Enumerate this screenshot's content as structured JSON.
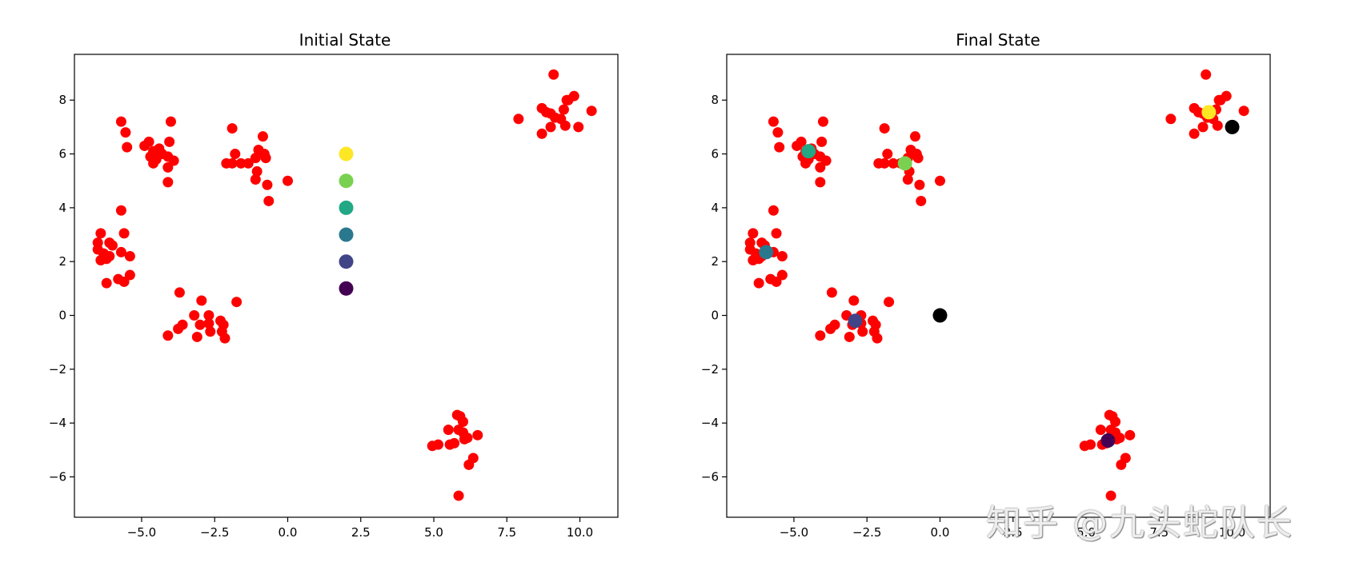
{
  "chart_data": [
    {
      "type": "scatter",
      "title": "Initial State",
      "xlabel": "",
      "ylabel": "",
      "xlim": [
        -7.3,
        11.3
      ],
      "ylim": [
        -7.5,
        9.7
      ],
      "xticks": [
        -5.0,
        -2.5,
        0.0,
        2.5,
        5.0,
        7.5,
        10.0
      ],
      "xtick_labels": [
        "−5.0",
        "−2.5",
        "0.0",
        "2.5",
        "5.0",
        "7.5",
        "10.0"
      ],
      "yticks": [
        -6,
        -4,
        -2,
        0,
        2,
        4,
        6,
        8
      ],
      "ytick_labels": [
        "−6",
        "−4",
        "−2",
        "0",
        "2",
        "4",
        "6",
        "8"
      ],
      "grid": false,
      "points_color": "#ff0000",
      "points": [
        [
          -5.7,
          7.2
        ],
        [
          -5.55,
          6.8
        ],
        [
          -5.5,
          6.25
        ],
        [
          -4.9,
          6.3
        ],
        [
          -4.75,
          6.45
        ],
        [
          -4.6,
          6.1
        ],
        [
          -4.4,
          6.2
        ],
        [
          -4.3,
          6.0
        ],
        [
          -4.7,
          5.9
        ],
        [
          -4.5,
          5.8
        ],
        [
          -4.6,
          5.65
        ],
        [
          -4.1,
          5.9
        ],
        [
          -3.9,
          5.75
        ],
        [
          -4.1,
          5.5
        ],
        [
          -4.05,
          6.45
        ],
        [
          -4.0,
          7.2
        ],
        [
          -4.1,
          4.95
        ],
        [
          -1.9,
          6.95
        ],
        [
          -1.8,
          6.0
        ],
        [
          -2.1,
          5.65
        ],
        [
          -1.9,
          5.65
        ],
        [
          -1.6,
          5.65
        ],
        [
          -1.35,
          5.65
        ],
        [
          -1.1,
          5.85
        ],
        [
          -1.0,
          6.15
        ],
        [
          -0.8,
          6.0
        ],
        [
          -0.85,
          6.65
        ],
        [
          -0.75,
          5.85
        ],
        [
          -1.05,
          5.35
        ],
        [
          -1.1,
          5.05
        ],
        [
          -0.7,
          4.85
        ],
        [
          -0.65,
          4.25
        ],
        [
          0.0,
          5.0
        ],
        [
          -5.7,
          3.9
        ],
        [
          -5.6,
          3.05
        ],
        [
          -6.4,
          3.05
        ],
        [
          -6.5,
          2.7
        ],
        [
          -6.1,
          2.7
        ],
        [
          -6.0,
          2.6
        ],
        [
          -6.5,
          2.45
        ],
        [
          -6.3,
          2.3
        ],
        [
          -6.2,
          2.1
        ],
        [
          -6.4,
          2.05
        ],
        [
          -5.7,
          2.35
        ],
        [
          -5.4,
          2.2
        ],
        [
          -6.2,
          1.2
        ],
        [
          -5.8,
          1.35
        ],
        [
          -5.6,
          1.25
        ],
        [
          -5.4,
          1.5
        ],
        [
          -6.1,
          2.2
        ],
        [
          -3.7,
          0.85
        ],
        [
          -2.95,
          0.55
        ],
        [
          -1.75,
          0.5
        ],
        [
          -3.2,
          0.0
        ],
        [
          -2.7,
          0.0
        ],
        [
          -2.3,
          -0.2
        ],
        [
          -3.0,
          -0.35
        ],
        [
          -2.7,
          -0.3
        ],
        [
          -2.2,
          -0.35
        ],
        [
          -3.6,
          -0.35
        ],
        [
          -3.75,
          -0.5
        ],
        [
          -2.65,
          -0.6
        ],
        [
          -2.25,
          -0.6
        ],
        [
          -4.1,
          -0.75
        ],
        [
          -3.1,
          -0.8
        ],
        [
          -2.15,
          -0.85
        ],
        [
          5.8,
          -3.7
        ],
        [
          5.9,
          -3.75
        ],
        [
          6.0,
          -3.95
        ],
        [
          5.5,
          -4.25
        ],
        [
          5.85,
          -4.25
        ],
        [
          6.0,
          -4.35
        ],
        [
          6.5,
          -4.45
        ],
        [
          6.15,
          -4.55
        ],
        [
          6.05,
          -4.6
        ],
        [
          5.15,
          -4.8
        ],
        [
          4.95,
          -4.85
        ],
        [
          5.7,
          -4.75
        ],
        [
          5.55,
          -4.8
        ],
        [
          6.35,
          -5.3
        ],
        [
          6.2,
          -5.55
        ],
        [
          5.85,
          -6.7
        ],
        [
          9.1,
          8.95
        ],
        [
          9.8,
          8.15
        ],
        [
          9.55,
          8.0
        ],
        [
          9.6,
          8.0
        ],
        [
          10.4,
          7.6
        ],
        [
          9.45,
          7.65
        ],
        [
          8.7,
          7.7
        ],
        [
          9.0,
          7.5
        ],
        [
          8.85,
          7.55
        ],
        [
          9.15,
          7.35
        ],
        [
          7.9,
          7.3
        ],
        [
          9.35,
          7.3
        ],
        [
          9.0,
          7.0
        ],
        [
          9.5,
          7.05
        ],
        [
          9.95,
          7.0
        ],
        [
          8.7,
          6.75
        ]
      ],
      "centroids": [
        {
          "x": 2,
          "y": 1,
          "color": "#440154"
        },
        {
          "x": 2,
          "y": 2,
          "color": "#414487"
        },
        {
          "x": 2,
          "y": 3,
          "color": "#2a788e"
        },
        {
          "x": 2,
          "y": 4,
          "color": "#22a884"
        },
        {
          "x": 2,
          "y": 5,
          "color": "#7ad151"
        },
        {
          "x": 2,
          "y": 6,
          "color": "#fde725"
        }
      ],
      "extra_markers": []
    },
    {
      "type": "scatter",
      "title": "Final State",
      "xlabel": "",
      "ylabel": "",
      "xlim": [
        -7.3,
        11.3
      ],
      "ylim": [
        -7.5,
        9.7
      ],
      "xticks": [
        -5.0,
        -2.5,
        0.0,
        2.5,
        5.0,
        7.5,
        10.0
      ],
      "xtick_labels": [
        "−5.0",
        "−2.5",
        "0.0",
        "2.5",
        "5.0",
        "7.5",
        "10.0"
      ],
      "yticks": [
        -6,
        -4,
        -2,
        0,
        2,
        4,
        6,
        8
      ],
      "ytick_labels": [
        "−6",
        "−4",
        "−2",
        "0",
        "2",
        "4",
        "6",
        "8"
      ],
      "grid": false,
      "points_color": "#ff0000",
      "points": [
        [
          -5.7,
          7.2
        ],
        [
          -5.55,
          6.8
        ],
        [
          -5.5,
          6.25
        ],
        [
          -4.9,
          6.3
        ],
        [
          -4.75,
          6.45
        ],
        [
          -4.6,
          6.1
        ],
        [
          -4.4,
          6.2
        ],
        [
          -4.3,
          6.0
        ],
        [
          -4.7,
          5.9
        ],
        [
          -4.5,
          5.8
        ],
        [
          -4.6,
          5.65
        ],
        [
          -4.1,
          5.9
        ],
        [
          -3.9,
          5.75
        ],
        [
          -4.1,
          5.5
        ],
        [
          -4.05,
          6.45
        ],
        [
          -4.0,
          7.2
        ],
        [
          -4.1,
          4.95
        ],
        [
          -1.9,
          6.95
        ],
        [
          -1.8,
          6.0
        ],
        [
          -2.1,
          5.65
        ],
        [
          -1.9,
          5.65
        ],
        [
          -1.6,
          5.65
        ],
        [
          -1.35,
          5.65
        ],
        [
          -1.1,
          5.85
        ],
        [
          -1.0,
          6.15
        ],
        [
          -0.8,
          6.0
        ],
        [
          -0.85,
          6.65
        ],
        [
          -0.75,
          5.85
        ],
        [
          -1.05,
          5.35
        ],
        [
          -1.1,
          5.05
        ],
        [
          -0.7,
          4.85
        ],
        [
          -0.65,
          4.25
        ],
        [
          0.0,
          5.0
        ],
        [
          -5.7,
          3.9
        ],
        [
          -5.6,
          3.05
        ],
        [
          -6.4,
          3.05
        ],
        [
          -6.5,
          2.7
        ],
        [
          -6.1,
          2.7
        ],
        [
          -6.0,
          2.6
        ],
        [
          -6.5,
          2.45
        ],
        [
          -6.3,
          2.3
        ],
        [
          -6.2,
          2.1
        ],
        [
          -6.4,
          2.05
        ],
        [
          -5.7,
          2.35
        ],
        [
          -5.4,
          2.2
        ],
        [
          -6.2,
          1.2
        ],
        [
          -5.8,
          1.35
        ],
        [
          -5.6,
          1.25
        ],
        [
          -5.4,
          1.5
        ],
        [
          -6.1,
          2.2
        ],
        [
          -3.7,
          0.85
        ],
        [
          -2.95,
          0.55
        ],
        [
          -1.75,
          0.5
        ],
        [
          -3.2,
          0.0
        ],
        [
          -2.7,
          0.0
        ],
        [
          -2.3,
          -0.2
        ],
        [
          -3.0,
          -0.35
        ],
        [
          -2.7,
          -0.3
        ],
        [
          -2.2,
          -0.35
        ],
        [
          -3.6,
          -0.35
        ],
        [
          -3.75,
          -0.5
        ],
        [
          -2.65,
          -0.6
        ],
        [
          -2.25,
          -0.6
        ],
        [
          -4.1,
          -0.75
        ],
        [
          -3.1,
          -0.8
        ],
        [
          -2.15,
          -0.85
        ],
        [
          5.8,
          -3.7
        ],
        [
          5.9,
          -3.75
        ],
        [
          6.0,
          -3.95
        ],
        [
          5.5,
          -4.25
        ],
        [
          5.85,
          -4.25
        ],
        [
          6.0,
          -4.35
        ],
        [
          6.5,
          -4.45
        ],
        [
          6.15,
          -4.55
        ],
        [
          6.05,
          -4.6
        ],
        [
          5.15,
          -4.8
        ],
        [
          4.95,
          -4.85
        ],
        [
          5.7,
          -4.75
        ],
        [
          5.55,
          -4.8
        ],
        [
          6.35,
          -5.3
        ],
        [
          6.2,
          -5.55
        ],
        [
          5.85,
          -6.7
        ],
        [
          9.1,
          8.95
        ],
        [
          9.8,
          8.15
        ],
        [
          9.55,
          8.0
        ],
        [
          9.6,
          8.0
        ],
        [
          10.4,
          7.6
        ],
        [
          9.45,
          7.65
        ],
        [
          8.7,
          7.7
        ],
        [
          9.0,
          7.5
        ],
        [
          8.85,
          7.55
        ],
        [
          9.15,
          7.35
        ],
        [
          7.9,
          7.3
        ],
        [
          9.35,
          7.3
        ],
        [
          9.0,
          7.0
        ],
        [
          9.5,
          7.05
        ],
        [
          9.95,
          7.0
        ],
        [
          8.7,
          6.75
        ]
      ],
      "centroids": [
        {
          "x": 5.75,
          "y": -4.65,
          "color": "#440154"
        },
        {
          "x": -2.9,
          "y": -0.2,
          "color": "#414487"
        },
        {
          "x": -5.95,
          "y": 2.35,
          "color": "#2a788e"
        },
        {
          "x": -4.5,
          "y": 6.1,
          "color": "#22a884"
        },
        {
          "x": -1.2,
          "y": 5.65,
          "color": "#7ad151"
        },
        {
          "x": 9.2,
          "y": 7.55,
          "color": "#fde725"
        }
      ],
      "extra_markers": [
        {
          "x": 0.0,
          "y": 0.0,
          "color": "#000000"
        },
        {
          "x": 10.0,
          "y": 7.0,
          "color": "#000000"
        }
      ]
    }
  ],
  "watermark": "知乎 @九头蛇队长"
}
